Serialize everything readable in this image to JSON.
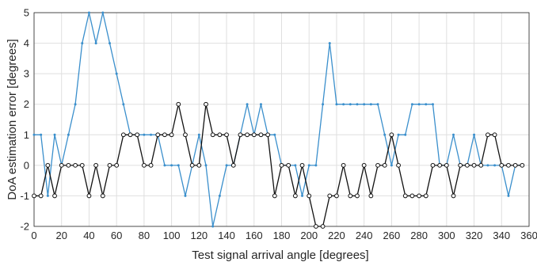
{
  "chart_data": {
    "type": "line",
    "title": "",
    "xlabel": "Test signal arrival angle [degrees]",
    "ylabel": "DoA estimation error [degrees]",
    "xlim": [
      0,
      360
    ],
    "ylim": [
      -2,
      5
    ],
    "x_ticks": [
      0,
      20,
      40,
      60,
      80,
      100,
      120,
      140,
      160,
      180,
      200,
      220,
      240,
      260,
      280,
      300,
      320,
      340,
      360
    ],
    "y_ticks": [
      -2,
      -1,
      0,
      1,
      2,
      3,
      4,
      5
    ],
    "grid": true,
    "legend": null,
    "x": [
      0,
      5,
      10,
      15,
      20,
      25,
      30,
      35,
      40,
      45,
      50,
      55,
      60,
      65,
      70,
      75,
      80,
      85,
      90,
      95,
      100,
      105,
      110,
      115,
      120,
      125,
      130,
      135,
      140,
      145,
      150,
      155,
      160,
      165,
      170,
      175,
      180,
      185,
      190,
      195,
      200,
      205,
      210,
      215,
      220,
      225,
      230,
      235,
      240,
      245,
      250,
      255,
      260,
      265,
      270,
      275,
      280,
      285,
      290,
      295,
      300,
      305,
      310,
      315,
      320,
      325,
      330,
      335,
      340,
      345,
      350,
      355
    ],
    "series": [
      {
        "color": "#3a8fcc",
        "marker": "dot",
        "values": [
          1,
          1,
          -1,
          1,
          0,
          1,
          2,
          4,
          5,
          4,
          5,
          4,
          3,
          2,
          1,
          1,
          1,
          1,
          1,
          0,
          0,
          0,
          -1,
          0,
          1,
          0,
          -2,
          -1,
          0,
          0,
          1,
          2,
          1,
          2,
          1,
          1,
          0,
          0,
          0,
          -1,
          0,
          0,
          2,
          4,
          2,
          2,
          2,
          2,
          2,
          2,
          2,
          1,
          0,
          1,
          1,
          2,
          2,
          2,
          2,
          0,
          0,
          1,
          0,
          0,
          1,
          0,
          0,
          0,
          0,
          -1,
          0,
          0
        ]
      },
      {
        "color": "#111111",
        "marker": "circle",
        "values": [
          -1,
          -1,
          0,
          -1,
          0,
          0,
          0,
          0,
          -1,
          0,
          -1,
          0,
          0,
          1,
          1,
          1,
          0,
          0,
          1,
          1,
          1,
          2,
          1,
          0,
          0,
          2,
          1,
          1,
          1,
          0,
          1,
          1,
          1,
          1,
          1,
          -1,
          0,
          0,
          -1,
          0,
          -1,
          -2,
          -2,
          -1,
          -1,
          0,
          -1,
          -1,
          0,
          -1,
          0,
          0,
          1,
          0,
          -1,
          -1,
          -1,
          -1,
          0,
          0,
          0,
          -1,
          0,
          0,
          0,
          0,
          1,
          1,
          0,
          0,
          0,
          0
        ]
      }
    ]
  }
}
